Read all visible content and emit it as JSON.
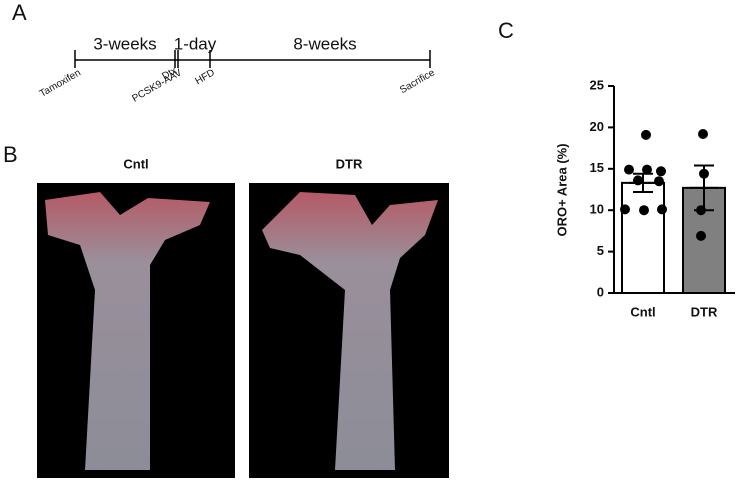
{
  "panels": {
    "a": "A",
    "b": "B",
    "c": "C"
  },
  "timeline": {
    "periods": [
      "3-weeks",
      "1-day",
      "8-weeks"
    ],
    "events": [
      "Tamoxifen",
      "Dtx",
      "PCSK9-AAV",
      "HFD",
      "Sacrifice"
    ]
  },
  "images": {
    "left": "Cntl",
    "right": "DTR"
  },
  "chart_data": {
    "type": "bar",
    "ylabel": "ORO+ Area (%)",
    "categories": [
      "Cntl",
      "DTR"
    ],
    "values": [
      13.3,
      12.7
    ],
    "errors": [
      1.1,
      2.7
    ],
    "colors": [
      "#ffffff",
      "#808080"
    ],
    "points": [
      [
        19.1,
        14.9,
        14.9,
        14.7,
        13.6,
        13.5,
        10.1,
        10.0,
        10.1
      ],
      [
        19.2,
        14.4,
        10.0,
        6.9
      ]
    ],
    "ylim": [
      0,
      25
    ],
    "yticks": [
      0,
      5,
      10,
      15,
      20,
      25
    ]
  }
}
